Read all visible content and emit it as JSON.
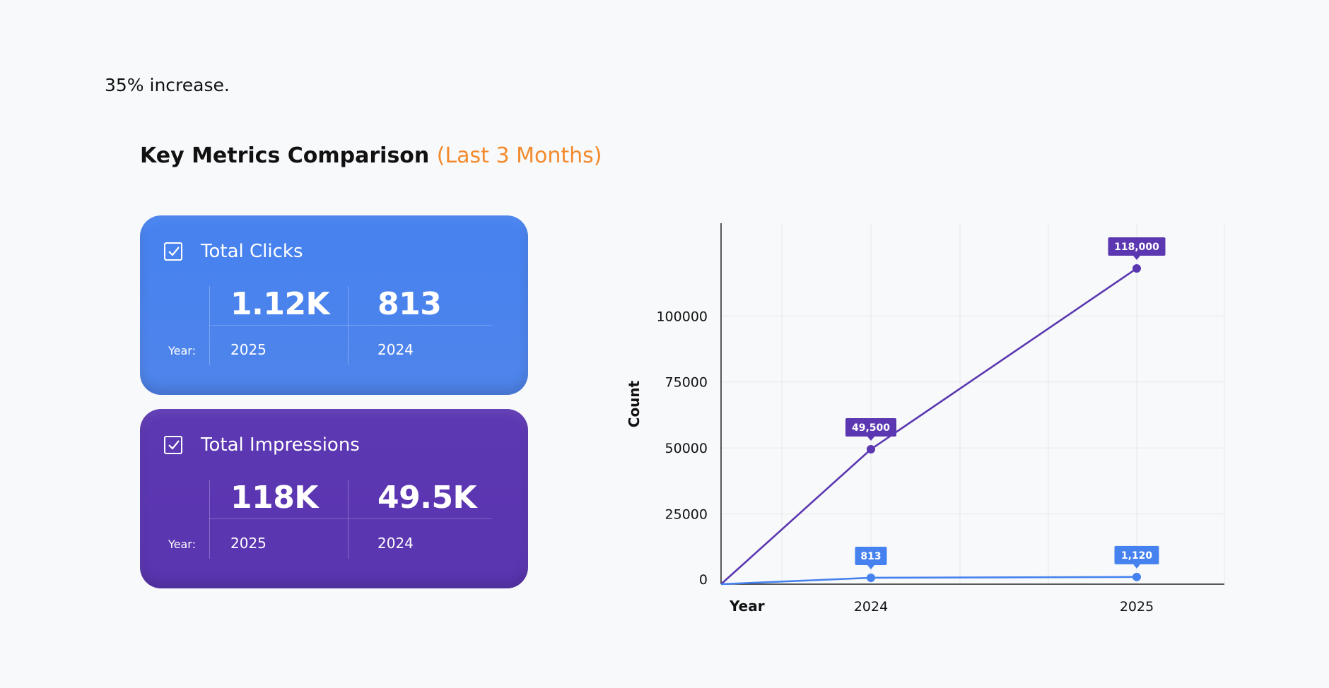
{
  "intro_text": "35% increase.",
  "heading": {
    "title": "Key Metrics Comparison ",
    "period": "(Last 3 Months)"
  },
  "cards": [
    {
      "title": "Total Clicks",
      "year_label": "Year:",
      "columns": [
        {
          "value": "1.12K",
          "year": "2025"
        },
        {
          "value": "813",
          "year": "2024"
        }
      ]
    },
    {
      "title": "Total Impressions",
      "year_label": "Year:",
      "columns": [
        {
          "value": "118K",
          "year": "2025"
        },
        {
          "value": "49.5K",
          "year": "2024"
        }
      ]
    }
  ],
  "colors": {
    "clicks": "#4682ef",
    "impressions": "#5b37b1",
    "accent": "#f28a2e"
  },
  "chart_data": {
    "type": "line",
    "x": [
      "2024",
      "2025"
    ],
    "xlabel": "Year",
    "ylabel": "Count",
    "ylim": [
      0,
      120000
    ],
    "yticks": [
      0,
      25000,
      50000,
      75000,
      100000
    ],
    "grid": true,
    "series": [
      {
        "values": [
          49500,
          118000
        ],
        "labels": [
          "49,500",
          "118,000"
        ],
        "color": "#5b37b1"
      },
      {
        "values": [
          813,
          1120
        ],
        "labels": [
          "813",
          "1,120"
        ],
        "color": "#4682ef"
      }
    ]
  }
}
